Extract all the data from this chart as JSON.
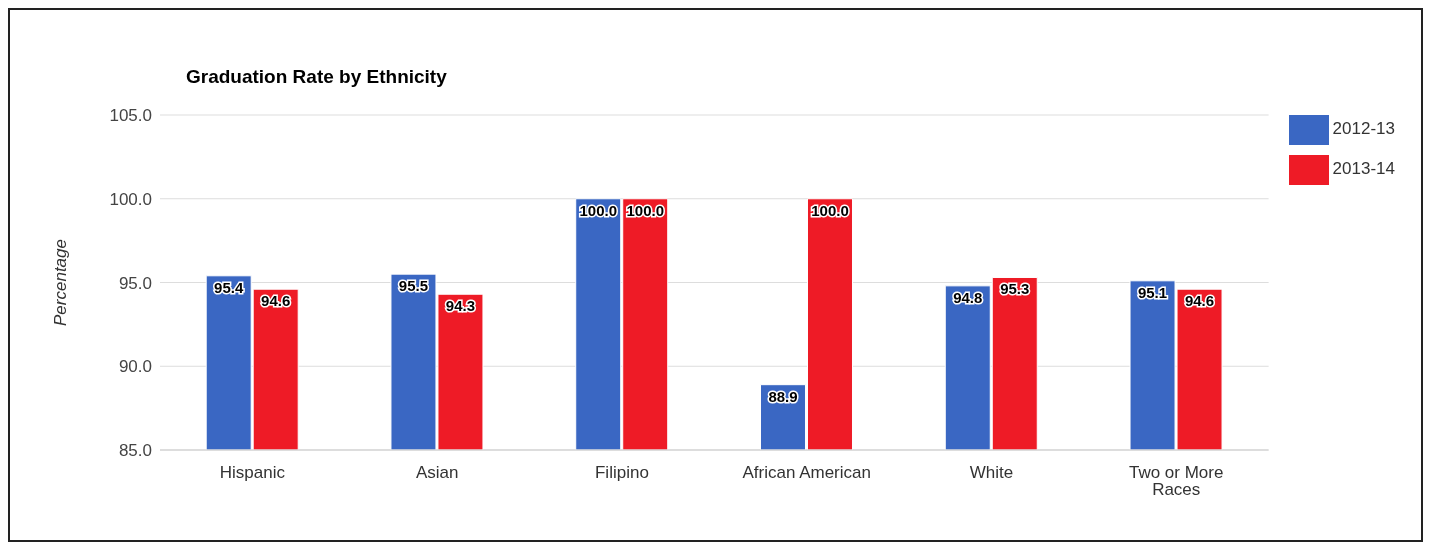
{
  "chart_data": {
    "type": "bar",
    "title": "Graduation Rate by Ethnicity",
    "ylabel": "Percentage",
    "categories": [
      "Hispanic",
      "Asian",
      "Filipino",
      "African American",
      "White",
      "Two or More Races"
    ],
    "series": [
      {
        "name": "2012-13",
        "color": "#3a67c3",
        "values": [
          95.4,
          95.5,
          100,
          88.9,
          94.8,
          95.1
        ],
        "value_labels": [
          "95.4",
          "95.5",
          "100.0",
          "88.9",
          "94.8",
          "95.1"
        ]
      },
      {
        "name": "2013-14",
        "color": "#ee1b26",
        "values": [
          94.6,
          94.3,
          100,
          100,
          95.3,
          94.6
        ],
        "value_labels": [
          "94.6",
          "94.3",
          "100.0",
          "100.0",
          "95.3",
          "94.6"
        ]
      }
    ],
    "ylim": [
      85,
      105
    ],
    "yticks": [
      {
        "value": 85,
        "label": "85.0"
      },
      {
        "value": 90,
        "label": "90.0"
      },
      {
        "value": 95,
        "label": "95.0"
      },
      {
        "value": 100,
        "label": "100.0"
      },
      {
        "value": 105,
        "label": "105.0"
      }
    ],
    "grid": "y",
    "legend": "top right"
  }
}
